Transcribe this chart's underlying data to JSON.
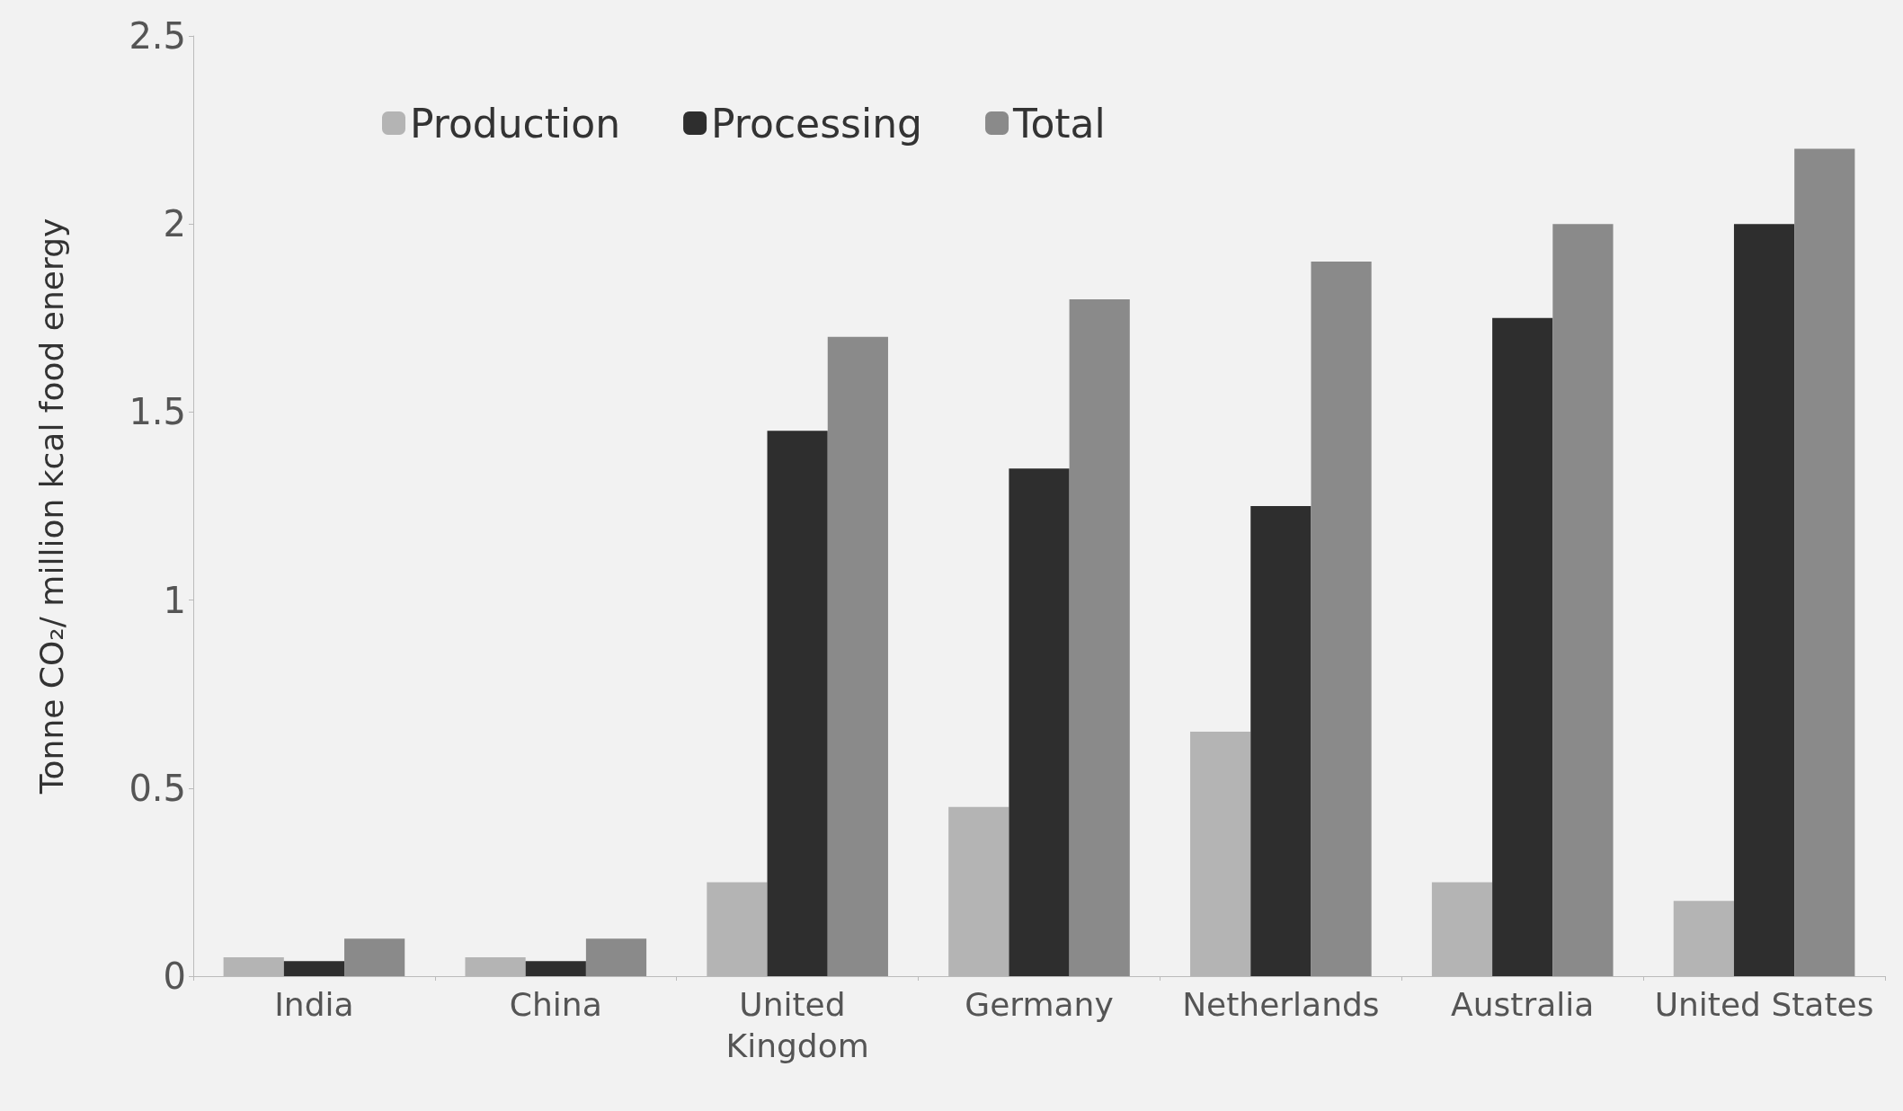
{
  "chart_data": {
    "type": "bar",
    "ylabel": "Tonne CO₂/ million kcal food energy",
    "categories": [
      "India",
      "China",
      "United Kingdom",
      "Germany",
      "Netherlands",
      "Australia",
      "United States"
    ],
    "series": [
      {
        "name": "Production",
        "color": "#b4b4b4",
        "values": [
          0.05,
          0.05,
          0.25,
          0.45,
          0.65,
          0.25,
          0.2
        ]
      },
      {
        "name": "Processing",
        "color": "#2e2e2e",
        "values": [
          0.04,
          0.04,
          1.45,
          1.35,
          1.25,
          1.75,
          2.0
        ]
      },
      {
        "name": "Total",
        "color": "#8a8a8a",
        "values": [
          0.1,
          0.1,
          1.7,
          1.8,
          1.9,
          2.0,
          2.2
        ]
      }
    ],
    "ylim": [
      0,
      2.5
    ],
    "yticks": [
      0,
      0.5,
      1,
      1.5,
      2,
      2.5
    ],
    "grid": false,
    "legend": "top"
  }
}
